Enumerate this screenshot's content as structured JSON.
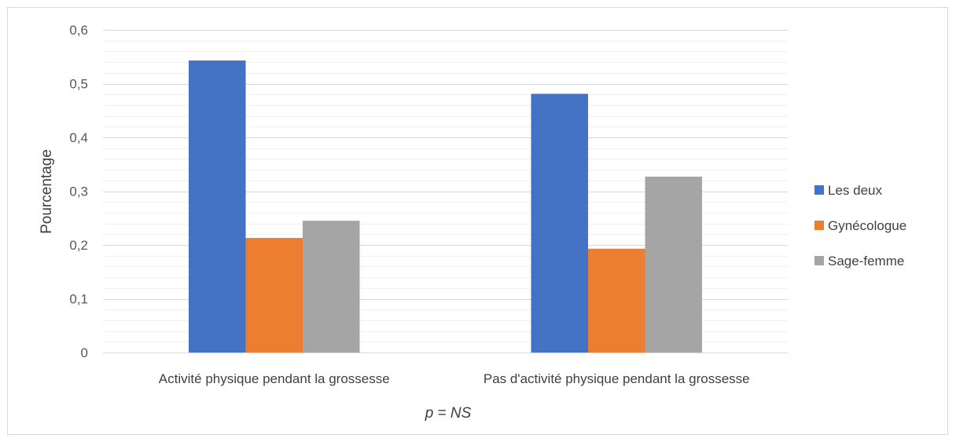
{
  "chart_data": {
    "type": "bar",
    "categories": [
      "Activité physique pendant la grossesse",
      "Pas d'activité physique pendant la grossesse"
    ],
    "series": [
      {
        "name": "Les deux",
        "values": [
          0.543,
          0.481
        ],
        "color": "#4472c4"
      },
      {
        "name": "Gynécologue",
        "values": [
          0.213,
          0.193
        ],
        "color": "#ed7d31"
      },
      {
        "name": "Sage-femme",
        "values": [
          0.245,
          0.327
        ],
        "color": "#a5a5a5"
      }
    ],
    "title": "",
    "xlabel": "",
    "ylabel": "Pourcentage",
    "note": "p = NS",
    "ylim": [
      0,
      0.6
    ],
    "yticks": [
      "0",
      "0,1",
      "0,2",
      "0,3",
      "0,4",
      "0,5",
      "0,6"
    ],
    "ytick_values": [
      0,
      0.1,
      0.2,
      0.3,
      0.4,
      0.5,
      0.6
    ],
    "grid": "major and minor horizontal",
    "legend_position": "right"
  }
}
